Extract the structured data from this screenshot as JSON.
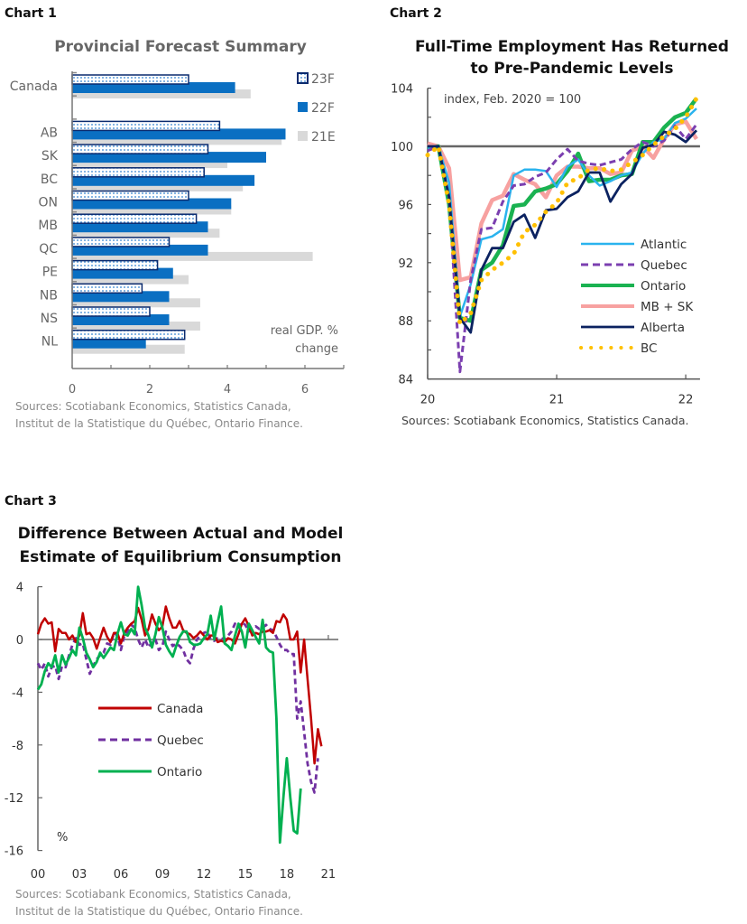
{
  "chart_labels": [
    "Chart 1",
    "Chart 2",
    "Chart 3"
  ],
  "chart_data": [
    {
      "type": "bar",
      "orientation": "horizontal",
      "title": "Provincial Forecast Summary",
      "categories": [
        "Canada",
        "",
        "AB",
        "SK",
        "BC",
        "ON",
        "MB",
        "QC",
        "PE",
        "NB",
        "NS",
        "NL"
      ],
      "series": [
        {
          "name": "23F",
          "color": "#0a2a6e",
          "pattern": "dotted",
          "values": [
            3.0,
            null,
            3.8,
            3.5,
            3.4,
            3.0,
            3.2,
            2.5,
            2.2,
            1.8,
            2.0,
            2.9
          ]
        },
        {
          "name": "22F",
          "color": "#0a6fc2",
          "values": [
            4.2,
            null,
            5.5,
            5.0,
            4.7,
            4.1,
            3.5,
            3.5,
            2.6,
            2.5,
            2.5,
            1.9
          ]
        },
        {
          "name": "21E",
          "color": "#d9d9d9",
          "values": [
            4.6,
            null,
            5.4,
            4.0,
            4.4,
            4.1,
            3.8,
            6.2,
            3.0,
            3.3,
            3.3,
            2.9
          ]
        }
      ],
      "xlim": [
        0,
        7
      ],
      "xticks": [
        "0",
        "2",
        "4",
        "6"
      ],
      "xtick_values": [
        0,
        2,
        4,
        6
      ],
      "annotation": [
        "real GDP. %",
        "change"
      ],
      "legend": [
        "23F",
        "22F",
        "21E"
      ],
      "legend_position": "top-right",
      "source": [
        "Sources: Scotiabank Economics, Statistics Canada,",
        "Institut de la Statistique du Québec, Ontario Finance."
      ]
    },
    {
      "type": "line",
      "title": [
        "Full-Time Employment Has Returned",
        "to Pre-Pandemic Levels"
      ],
      "annotation": "index, Feb. 2020 = 100",
      "x_start": "2020-01",
      "x_frequency": "monthly",
      "xlim": [
        0,
        26
      ],
      "xticks": [
        "20",
        "21",
        "22"
      ],
      "xtick_values": [
        0,
        12,
        24
      ],
      "ylim": [
        84,
        104
      ],
      "yticks": [
        "84",
        "88",
        "92",
        "96",
        "100",
        "104"
      ],
      "ytick_values": [
        84,
        88,
        92,
        96,
        100,
        104
      ],
      "reference_line": 100,
      "series": [
        {
          "name": "Atlantic",
          "color": "#2ab3ee",
          "style": "solid",
          "values": [
            99.9,
            100,
            97.5,
            88.3,
            90.5,
            93.6,
            93.8,
            94.3,
            98.0,
            98.4,
            98.4,
            98.3,
            97.2,
            98.6,
            99.1,
            98.0,
            97.3,
            97.6,
            98.0,
            98.2,
            99.5,
            100.3,
            100.5,
            101.6,
            101.9,
            102.6
          ]
        },
        {
          "name": "Quebec",
          "color": "#7b3fb0",
          "style": "dashed",
          "values": [
            99.7,
            100,
            96.5,
            84.5,
            90.8,
            94.3,
            94.4,
            96.2,
            97.3,
            97.4,
            97.9,
            98.2,
            99.1,
            99.8,
            99.0,
            98.8,
            98.7,
            98.9,
            99.1,
            99.8,
            100.3,
            100.0,
            100.4,
            101.4,
            100.5,
            101.5
          ]
        },
        {
          "name": "Ontario",
          "color": "#1ab251",
          "style": "solid",
          "values": [
            99.8,
            100,
            96.0,
            88.2,
            88.0,
            91.5,
            92.0,
            93.2,
            95.9,
            96.0,
            96.9,
            97.1,
            97.4,
            98.3,
            99.5,
            97.6,
            97.7,
            97.7,
            98.0,
            98.1,
            100.3,
            100.3,
            101.3,
            102.0,
            102.3,
            103.3
          ]
        },
        {
          "name": "MB + SK",
          "color": "#f7a1a0",
          "style": "solid",
          "values": [
            100.2,
            100,
            98.5,
            90.8,
            91.0,
            94.7,
            96.3,
            96.6,
            98.1,
            97.7,
            97.4,
            96.5,
            98.0,
            98.6,
            98.6,
            98.5,
            98.5,
            98.1,
            98.2,
            99.7,
            100.0,
            99.2,
            100.5,
            101.5,
            101.7,
            100.5
          ]
        },
        {
          "name": "Alberta",
          "color": "#0b2260",
          "style": "solid",
          "values": [
            100,
            100,
            96.5,
            88.2,
            87.2,
            91.5,
            93.0,
            93.0,
            94.8,
            95.3,
            93.7,
            95.6,
            95.7,
            96.5,
            96.9,
            98.2,
            98.2,
            96.2,
            97.4,
            98.1,
            99.9,
            100.1,
            101.0,
            100.8,
            100.3,
            101.1
          ]
        },
        {
          "name": "BC",
          "color": "#ffc000",
          "style": "dotted",
          "values": [
            99.4,
            100,
            96.0,
            87.8,
            88.5,
            90.8,
            91.5,
            92.0,
            92.6,
            94.1,
            94.6,
            95.5,
            96.1,
            97.5,
            97.8,
            98.4,
            98.5,
            98.3,
            98.4,
            98.9,
            99.4,
            100.1,
            100.7,
            101.2,
            102.0,
            103.3
          ]
        }
      ],
      "legend": [
        "Atlantic",
        "Quebec",
        "Ontario",
        "MB + SK",
        "Alberta",
        "BC"
      ],
      "legend_position": "bottom-right",
      "source": [
        "Sources: Scotiabank Economics, Statistics Canada."
      ]
    },
    {
      "type": "line",
      "title": [
        "Difference Between Actual and Model",
        "Estimate of Equilibrium Consumption"
      ],
      "x_start": 2000,
      "x_frequency": "quarterly",
      "xlim": [
        2000,
        2021.75
      ],
      "xticks": [
        "00",
        "03",
        "06",
        "09",
        "12",
        "15",
        "18",
        "21"
      ],
      "xtick_values": [
        2000,
        2003,
        2006,
        2009,
        2012,
        2015,
        2018,
        2021
      ],
      "ylim": [
        -16,
        4
      ],
      "yticks": [
        "-16",
        "-12",
        "-8",
        "-4",
        "0",
        "4"
      ],
      "ytick_values": [
        -16,
        -12,
        -8,
        -4,
        0,
        4
      ],
      "ylabel": "%",
      "series": [
        {
          "name": "Canada",
          "color": "#c00000",
          "style": "solid",
          "values": [
            0.4,
            1.2,
            1.6,
            1.2,
            1.3,
            -0.9,
            0.8,
            0.5,
            0.5,
            0.0,
            0.3,
            -0.2,
            0.3,
            2.0,
            0.4,
            0.5,
            0.1,
            -0.7,
            0.1,
            0.9,
            0.2,
            -0.2,
            0.5,
            0.5,
            -0.3,
            0.5,
            0.9,
            1.2,
            1.4,
            2.4,
            1.5,
            0.3,
            0.8,
            1.9,
            1.2,
            0.7,
            1.0,
            2.5,
            1.6,
            0.9,
            0.9,
            1.4,
            0.7,
            0.5,
            0.4,
            0.1,
            0.3,
            0.6,
            0.3,
            0.0,
            0.3,
            0.3,
            -0.2,
            -0.1,
            -0.2,
            0.1,
            0.0,
            -0.3,
            0.4,
            1.2,
            1.6,
            1.0,
            0.3,
            0.5,
            0.4,
            0.6,
            0.6,
            0.7,
            0.5,
            1.4,
            1.3,
            1.9,
            1.5,
            0.0,
            0.0,
            0.6,
            -2.5,
            0.0,
            -3.0,
            -6.0,
            -9.4,
            -6.8,
            -8.1
          ]
        },
        {
          "name": "Quebec",
          "color": "#7030a0",
          "style": "dashed",
          "values": [
            -1.8,
            -2.3,
            -1.8,
            -2.8,
            -2.1,
            -2.0,
            -3.0,
            -2.0,
            -2.1,
            -1.2,
            -0.4,
            0.1,
            -0.4,
            -0.3,
            -1.5,
            -2.6,
            -2.0,
            -1.5,
            -1.2,
            -1.0,
            -0.3,
            -0.4,
            0.5,
            0.3,
            -0.8,
            0.3,
            0.6,
            1.1,
            0.9,
            0.0,
            -0.6,
            0.0,
            -0.6,
            -0.2,
            0.0,
            -0.8,
            -0.5,
            0.6,
            0.0,
            -0.5,
            -0.3,
            -0.5,
            -0.8,
            -1.5,
            -1.8,
            -0.7,
            0.0,
            0.3,
            0.5,
            0.6,
            0.0,
            -0.1,
            0.1,
            0.1,
            0.0,
            0.3,
            0.6,
            1.2,
            0.9,
            1.3,
            1.1,
            0.6,
            0.9,
            1.0,
            0.8,
            0.9,
            1.1,
            0.8,
            0.7,
            0.2,
            -0.4,
            -0.8,
            -0.8,
            -1.1,
            -1.1,
            -6.0,
            -4.7,
            -7.0,
            -9.4,
            -10.8,
            -11.6,
            -9.0
          ]
        },
        {
          "name": "Ontario",
          "color": "#00b050",
          "style": "solid",
          "values": [
            -3.8,
            -3.4,
            -2.4,
            -1.8,
            -2.1,
            -1.2,
            -2.5,
            -1.2,
            -1.9,
            -1.4,
            -0.8,
            -1.2,
            0.9,
            0.1,
            -1.0,
            -1.5,
            -2.1,
            -1.7,
            -1.0,
            -1.4,
            -1.0,
            -0.6,
            -0.8,
            0.4,
            1.3,
            0.4,
            0.3,
            0.8,
            0.4,
            4.0,
            2.6,
            0.9,
            0.3,
            -0.6,
            0.4,
            1.7,
            0.9,
            -0.4,
            -0.9,
            -1.3,
            -0.5,
            0.2,
            0.6,
            0.6,
            -0.2,
            -0.4,
            -0.4,
            -0.3,
            0.1,
            0.4,
            1.8,
            0.0,
            1.3,
            2.5,
            -0.3,
            -0.5,
            -0.8,
            0.3,
            1.2,
            0.6,
            -0.6,
            1.2,
            0.7,
            0.2,
            -0.3,
            1.5,
            -0.6,
            -0.9,
            -1.0,
            -6.0,
            -15.4,
            -12.0,
            -9.0,
            -12.0,
            -14.5,
            -14.7,
            -11.3
          ]
        }
      ],
      "legend": [
        "Canada",
        "Quebec",
        "Ontario"
      ],
      "legend_position": "center-left",
      "source": [
        "Sources: Scotiabank Economics, Statistics Canada,",
        "Institut de la Statistique du Québec, Ontario Finance."
      ]
    }
  ]
}
